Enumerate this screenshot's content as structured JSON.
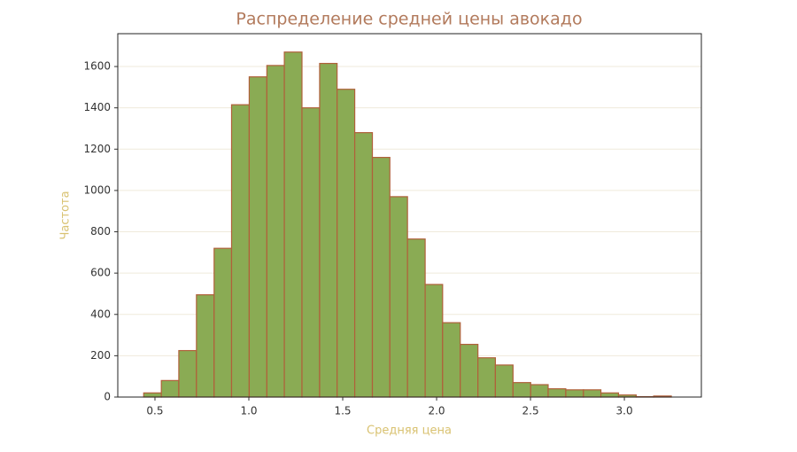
{
  "chart_data": {
    "type": "histogram",
    "title": "Распределение средней цены авокадо",
    "x_label": "Средняя цена",
    "y_label": "Частота",
    "bins": [
      0.44,
      0.534,
      0.627,
      0.721,
      0.815,
      0.908,
      1.002,
      1.096,
      1.189,
      1.283,
      1.377,
      1.47,
      1.564,
      1.658,
      1.751,
      1.845,
      1.939,
      2.032,
      2.126,
      2.22,
      2.313,
      2.407,
      2.501,
      2.594,
      2.688,
      2.782,
      2.875,
      2.969,
      3.063,
      3.156,
      3.25
    ],
    "values": [
      20,
      80,
      225,
      495,
      720,
      1415,
      1550,
      1605,
      1670,
      1400,
      1615,
      1490,
      1280,
      1160,
      970,
      765,
      545,
      360,
      255,
      190,
      155,
      70,
      60,
      40,
      35,
      35,
      20,
      10,
      2,
      5
    ],
    "color": "#8aab54",
    "edgecolor": "#b0603a",
    "xlim": [
      0.302,
      3.41
    ],
    "ylim": [
      0,
      1759
    ],
    "xticks": [
      0.5,
      {
        "value": 1.0,
        "label": "1.0"
      },
      1.5,
      {
        "value": 2.0,
        "label": "2.0"
      },
      2.5,
      {
        "value": 3.0,
        "label": "3.0"
      }
    ],
    "yticks": [
      0,
      200,
      400,
      600,
      800,
      1000,
      1200,
      1400,
      1600
    ],
    "grid": true
  }
}
